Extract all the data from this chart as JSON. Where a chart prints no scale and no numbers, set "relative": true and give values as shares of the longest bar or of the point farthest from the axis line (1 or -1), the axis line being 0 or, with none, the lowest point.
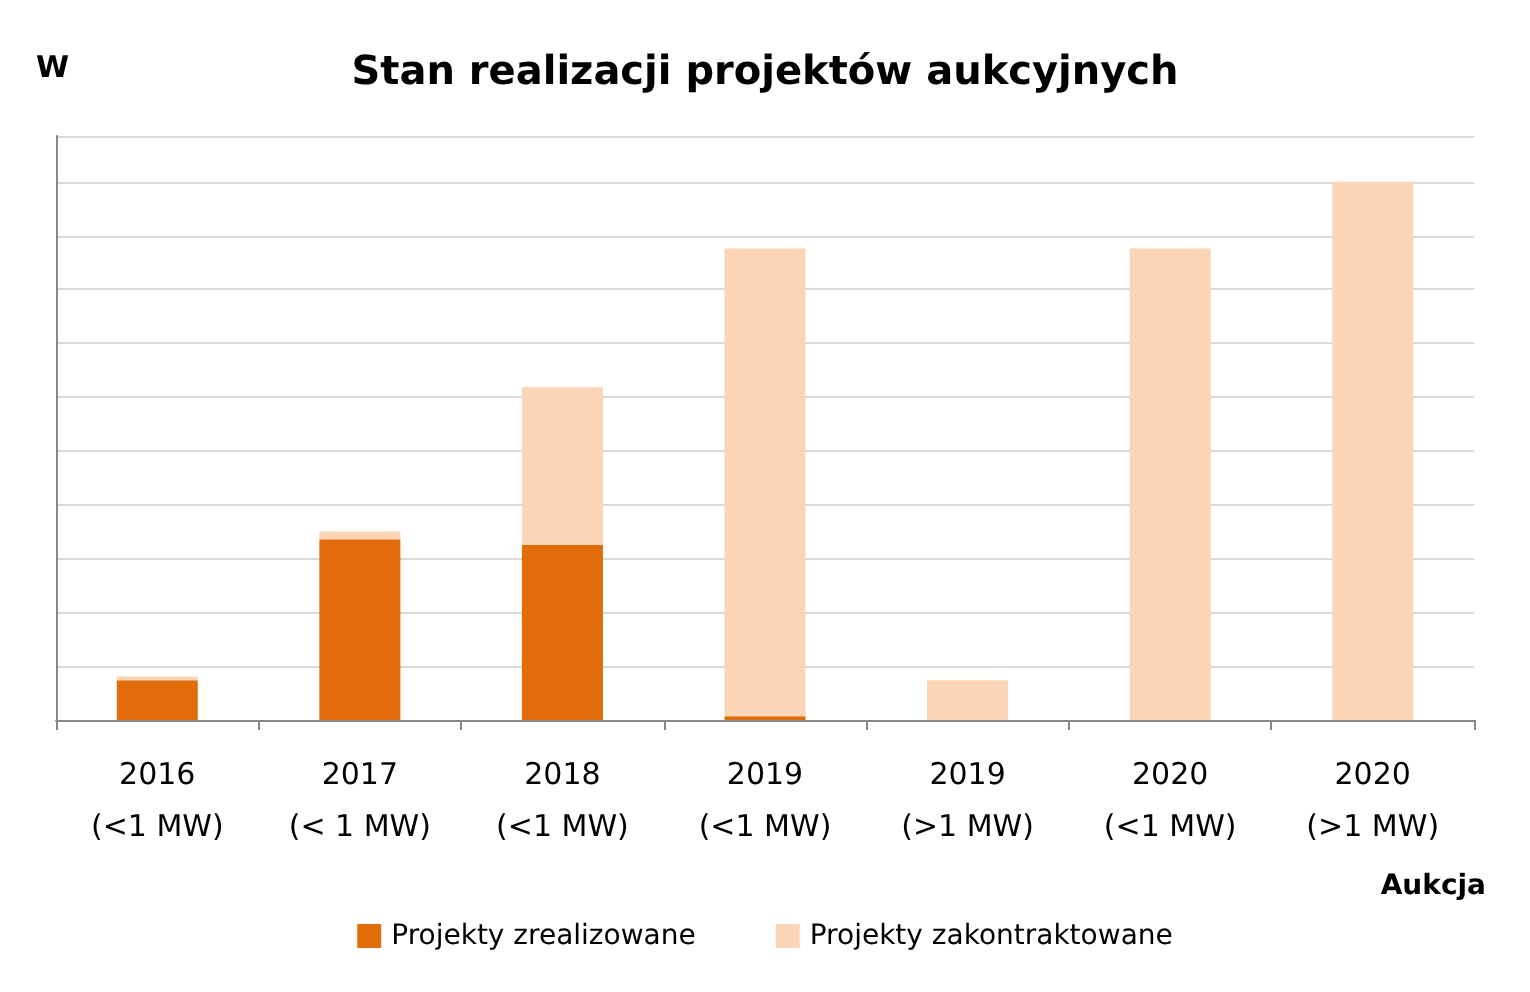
{
  "chart_data": {
    "type": "bar",
    "title": "Stan realizacji projektów aukcyjnych",
    "ylabel": "W",
    "xlabel": "Aukcja",
    "categories": [
      "2016\n(<1 MW)",
      "2017\n(< 1 MW)",
      "2018\n(<1 MW)",
      "2019\n(<1 MW)",
      "2019\n(>1 MW)",
      "2020\n(<1 MW)",
      "2020\n(>1 MW)"
    ],
    "series": [
      {
        "name": "Projekty zrealizowane",
        "color": "#e36c0a",
        "values": [
          0.074,
          0.336,
          0.325,
          0.007,
          0,
          0,
          0
        ]
      },
      {
        "name": "Projekty zakontraktowane",
        "color": "#fbd5b5",
        "values": [
          0.007,
          0.014,
          0.293,
          0.869,
          0.074,
          0.876,
          1
        ]
      }
    ],
    "stacked": true,
    "relative": true,
    "grid": "y",
    "legend": "bottom"
  }
}
